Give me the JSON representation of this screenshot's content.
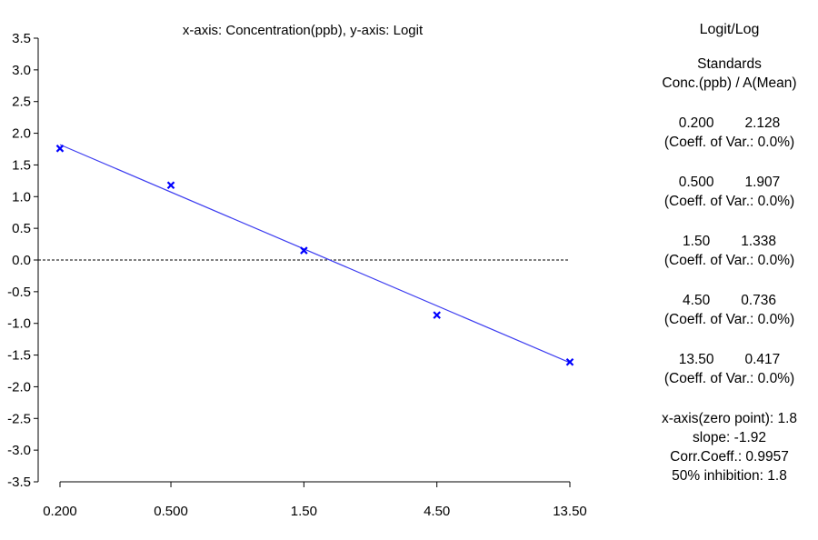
{
  "chart_data": {
    "type": "scatter",
    "title": "x-axis: Concentration(ppb), y-axis: Logit",
    "x_scale": "log",
    "x_ticks": [
      "0.200",
      "0.500",
      "1.50",
      "4.50",
      "13.50"
    ],
    "y_ticks": [
      "3.5",
      "3.0",
      "2.5",
      "2.0",
      "1.5",
      "1.0",
      "0.5",
      "0.0",
      "-0.5",
      "-1.0",
      "-1.5",
      "-2.0",
      "-2.5",
      "-3.0",
      "-3.5"
    ],
    "ylim": [
      -3.5,
      3.5
    ],
    "grid": false,
    "zero_line": "dashed",
    "series": [
      {
        "x": [
          0.2,
          0.5,
          1.5,
          4.5,
          13.5
        ],
        "y": [
          1.76,
          1.18,
          0.15,
          -0.87,
          -1.61
        ]
      }
    ],
    "fit_line": {
      "x": [
        0.2,
        13.5
      ],
      "y": [
        1.82,
        -1.62
      ]
    },
    "point_color": "#0000ff",
    "line_color": "#3c3cf0"
  },
  "side_panel": {
    "heading": "Logit/Log",
    "standards_label": "Standards",
    "columns_label": "Conc.(ppb) / A(Mean)",
    "standards": [
      {
        "conc": "0.200",
        "mean": "2.128",
        "cv": "(Coeff. of Var.: 0.0%)"
      },
      {
        "conc": "0.500",
        "mean": "1.907",
        "cv": "(Coeff. of Var.: 0.0%)"
      },
      {
        "conc": "1.50",
        "mean": "1.338",
        "cv": "(Coeff. of Var.: 0.0%)"
      },
      {
        "conc": "4.50",
        "mean": "0.736",
        "cv": "(Coeff. of Var.: 0.0%)"
      },
      {
        "conc": "13.50",
        "mean": "0.417",
        "cv": "(Coeff. of Var.: 0.0%)"
      }
    ],
    "zero_point": "x-axis(zero point): 1.8",
    "slope": "slope: -1.92",
    "corr": "Corr.Coeff.: 0.9957",
    "inhibition": "50% inhibition: 1.8"
  }
}
